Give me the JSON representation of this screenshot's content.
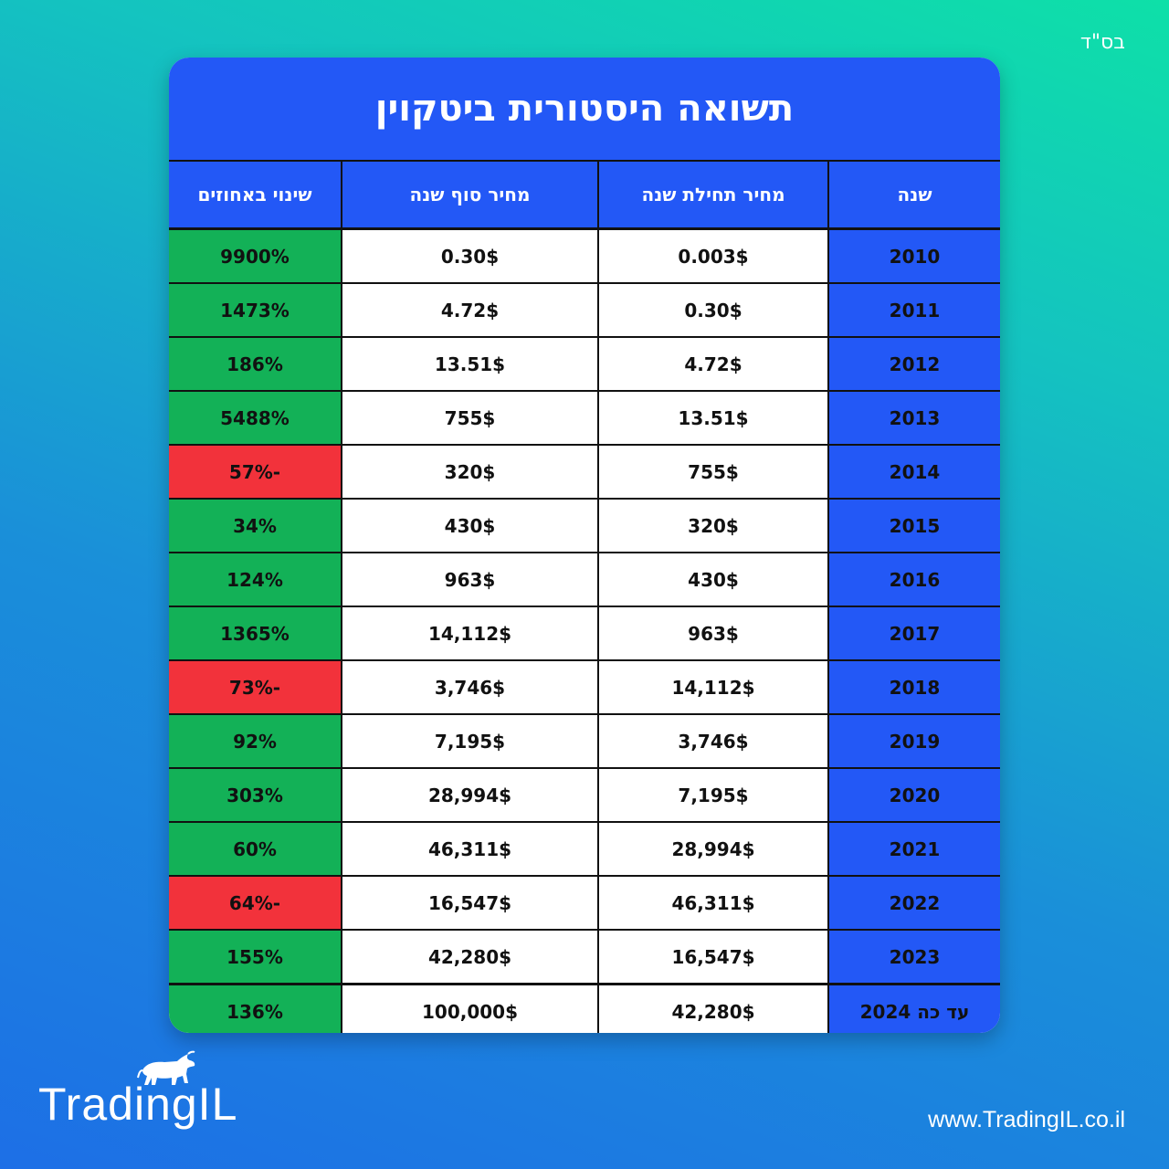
{
  "top_note": "בס\"ד",
  "title": "תשואה היסטורית ביטקוין",
  "headers": {
    "year": "שנה",
    "start_price": "מחיר תחילת שנה",
    "end_price": "מחיר סוף שנה",
    "change": "שינוי באחוזים"
  },
  "rows": [
    {
      "year": "2010",
      "start": "0.003$",
      "end": "0.30$",
      "change": "9900%",
      "status": "positive"
    },
    {
      "year": "2011",
      "start": "0.30$",
      "end": "4.72$",
      "change": "1473%",
      "status": "positive"
    },
    {
      "year": "2012",
      "start": "4.72$",
      "end": "13.51$",
      "change": "186%",
      "status": "positive"
    },
    {
      "year": "2013",
      "start": "13.51$",
      "end": "755$",
      "change": "5488%",
      "status": "positive"
    },
    {
      "year": "2014",
      "start": "755$",
      "end": "320$",
      "change": "-57%",
      "status": "negative"
    },
    {
      "year": "2015",
      "start": "320$",
      "end": "430$",
      "change": "34%",
      "status": "positive"
    },
    {
      "year": "2016",
      "start": "430$",
      "end": "963$",
      "change": "124%",
      "status": "positive"
    },
    {
      "year": "2017",
      "start": "963$",
      "end": "14,112$",
      "change": "1365%",
      "status": "positive"
    },
    {
      "year": "2018",
      "start": "14,112$",
      "end": "3,746$",
      "change": "-73%",
      "status": "negative"
    },
    {
      "year": "2019",
      "start": "3,746$",
      "end": "7,195$",
      "change": "92%",
      "status": "positive"
    },
    {
      "year": "2020",
      "start": "7,195$",
      "end": "28,994$",
      "change": "303%",
      "status": "positive"
    },
    {
      "year": "2021",
      "start": "28,994$",
      "end": "46,311$",
      "change": "60%",
      "status": "positive"
    },
    {
      "year": "2022",
      "start": "46,311$",
      "end": "16,547$",
      "change": "-64%",
      "status": "negative"
    },
    {
      "year": "2023",
      "start": "16,547$",
      "end": "42,280$",
      "change": "155%",
      "status": "positive"
    },
    {
      "year": "עד כה 2024",
      "start": "42,280$",
      "end": "100,000$",
      "change": "136%",
      "status": "positive"
    }
  ],
  "colors": {
    "header_blue": "#2358f6",
    "positive_green": "#13b157",
    "negative_red": "#f2323b"
  },
  "logo": {
    "text": "TradingIL",
    "icon": "bull-icon"
  },
  "website": "www.TradingIL.co.il"
}
